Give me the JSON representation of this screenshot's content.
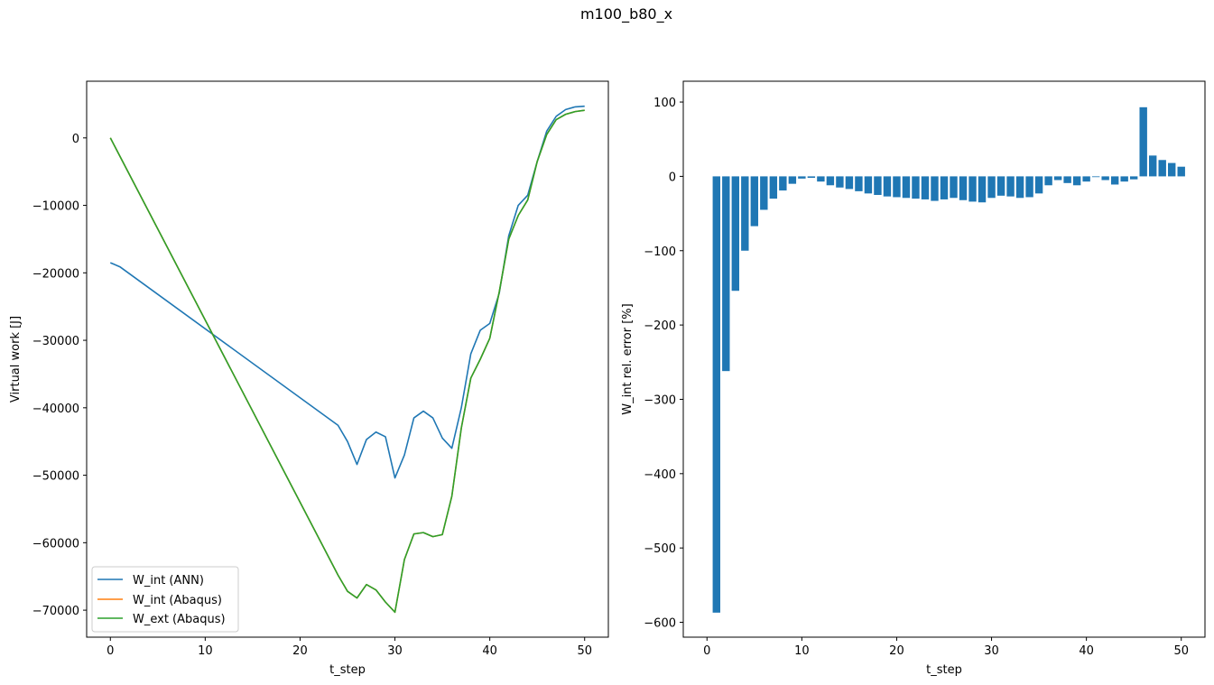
{
  "figure": {
    "suptitle": "m100_b80_x"
  },
  "colors": {
    "blue": "#1f77b4",
    "orange": "#ff7f0e",
    "green": "#2ca02c"
  },
  "chart_data": [
    {
      "type": "line",
      "xlabel": "t_step",
      "ylabel": "Virtual work [J]",
      "xlim": [
        -2.5,
        52.5
      ],
      "ylim": [
        -74000,
        8400
      ],
      "xticks": [
        0,
        10,
        20,
        30,
        40,
        50
      ],
      "yticks": [
        -70000,
        -60000,
        -50000,
        -40000,
        -30000,
        -20000,
        -10000,
        0
      ],
      "ytick_labels": [
        "−70000",
        "−60000",
        "−50000",
        "−40000",
        "−30000",
        "−20000",
        "−10000",
        "0"
      ],
      "grid": false,
      "legend": "lower-left",
      "series": [
        {
          "name": "W_int (ANN)",
          "color": "#1f77b4",
          "x": [
            0,
            1,
            24,
            25,
            26,
            27,
            28,
            29,
            30,
            31,
            32,
            33,
            34,
            35,
            36,
            37,
            38,
            39,
            40,
            41,
            42,
            43,
            44,
            45,
            46,
            47,
            48,
            49,
            50
          ],
          "y": [
            -18500,
            -19100,
            -42600,
            -45000,
            -48400,
            -44700,
            -43600,
            -44300,
            -50400,
            -47000,
            -41500,
            -40500,
            -41500,
            -44500,
            -46000,
            -40000,
            -32000,
            -28500,
            -27500,
            -23000,
            -14500,
            -10000,
            -8500,
            -3500,
            1000,
            3200,
            4200,
            4600,
            4700
          ]
        },
        {
          "name": "W_int (Abaqus)",
          "color": "#ff7f0e",
          "x": [
            0,
            24,
            25,
            26,
            27,
            28,
            29,
            30,
            31,
            32,
            33,
            34,
            35,
            36,
            37,
            38,
            39,
            40,
            41,
            42,
            43,
            44,
            45,
            46,
            47,
            48,
            49,
            50
          ],
          "y": [
            0,
            -64800,
            -67200,
            -68200,
            -66200,
            -67000,
            -68800,
            -70300,
            -62500,
            -58700,
            -58500,
            -59100,
            -58800,
            -53100,
            -43000,
            -35600,
            -32800,
            -29700,
            -22800,
            -15000,
            -11500,
            -9200,
            -3500,
            500,
            2700,
            3500,
            3900,
            4100
          ]
        },
        {
          "name": "W_ext (Abaqus)",
          "color": "#2ca02c",
          "x": [
            0,
            24,
            25,
            26,
            27,
            28,
            29,
            30,
            31,
            32,
            33,
            34,
            35,
            36,
            37,
            38,
            39,
            40,
            41,
            42,
            43,
            44,
            45,
            46,
            47,
            48,
            49,
            50
          ],
          "y": [
            0,
            -64800,
            -67200,
            -68200,
            -66200,
            -67000,
            -68800,
            -70300,
            -62500,
            -58700,
            -58500,
            -59100,
            -58800,
            -53100,
            -43000,
            -35600,
            -32800,
            -29700,
            -22800,
            -15000,
            -11500,
            -9200,
            -3500,
            500,
            2700,
            3500,
            3900,
            4100
          ]
        }
      ]
    },
    {
      "type": "bar",
      "xlabel": "t_step",
      "ylabel": "W_int rel. error [%]",
      "xlim": [
        -2.5,
        52.5
      ],
      "ylim": [
        -620,
        128
      ],
      "xticks": [
        0,
        10,
        20,
        30,
        40,
        50
      ],
      "yticks": [
        -600,
        -500,
        -400,
        -300,
        -200,
        -100,
        0,
        100
      ],
      "ytick_labels": [
        "−600",
        "−500",
        "−400",
        "−300",
        "−200",
        "−100",
        "0",
        "100"
      ],
      "grid": false,
      "color": "#1f77b4",
      "x": [
        1,
        2,
        3,
        4,
        5,
        6,
        7,
        8,
        9,
        10,
        11,
        12,
        13,
        14,
        15,
        16,
        17,
        18,
        19,
        20,
        21,
        22,
        23,
        24,
        25,
        26,
        27,
        28,
        29,
        30,
        31,
        32,
        33,
        34,
        35,
        36,
        37,
        38,
        39,
        40,
        41,
        42,
        43,
        44,
        45,
        46,
        47,
        48,
        49,
        50
      ],
      "values": [
        -587,
        -262,
        -154,
        -100,
        -67,
        -45,
        -30,
        -19,
        -10,
        -3,
        -2,
        -7,
        -12,
        -15,
        -17,
        -20,
        -23,
        -25,
        -27,
        -28,
        -29,
        -30,
        -31,
        -33,
        -31,
        -29,
        -32,
        -34,
        -35,
        -29,
        -26,
        -27,
        -29,
        -28,
        -23,
        -12,
        -5,
        -9,
        -12,
        -7,
        -1,
        -5,
        -11,
        -7,
        -4,
        93,
        28,
        22,
        18,
        13
      ]
    }
  ]
}
